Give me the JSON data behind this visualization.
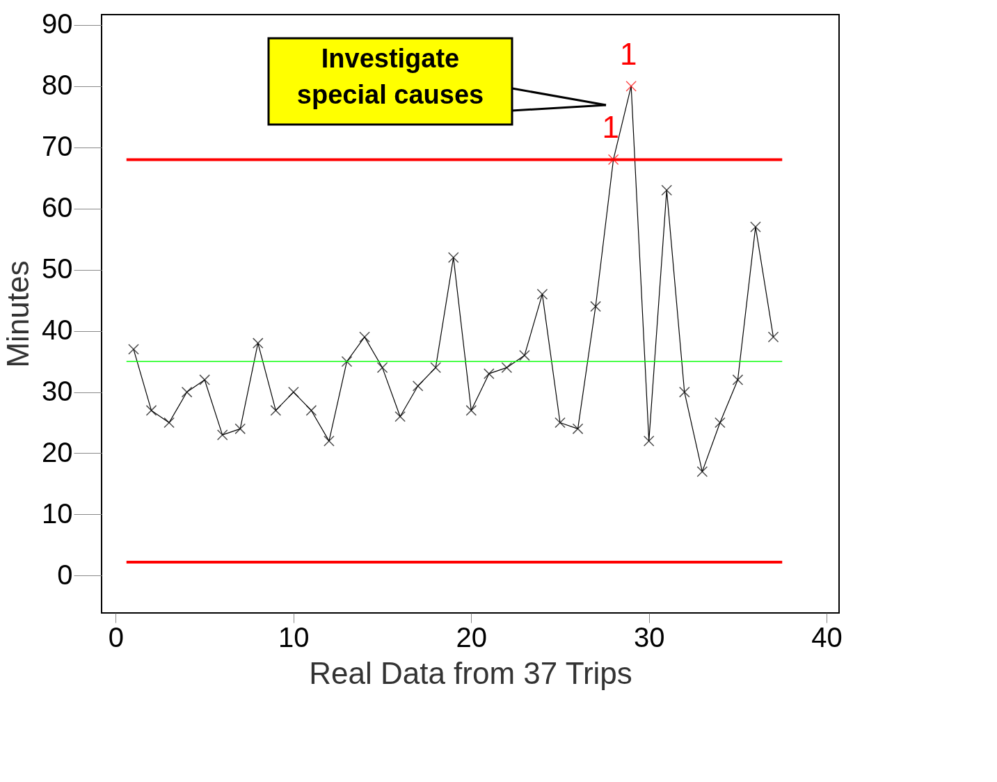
{
  "chart_data": {
    "type": "line",
    "xlabel": "Real Data from 37 Trips",
    "ylabel": "Minutes",
    "x": [
      1,
      2,
      3,
      4,
      5,
      6,
      7,
      8,
      9,
      10,
      11,
      12,
      13,
      14,
      15,
      16,
      17,
      18,
      19,
      20,
      21,
      22,
      23,
      24,
      25,
      26,
      27,
      28,
      29,
      30,
      31,
      32,
      33,
      34,
      35,
      36,
      37
    ],
    "series": [
      {
        "color": "#000000",
        "colors": [
          "#000000",
          "#000000",
          "#000000",
          "#000000",
          "#000000",
          "#000000",
          "#000000",
          "#000000",
          "#000000",
          "#000000",
          "#000000",
          "#000000",
          "#000000",
          "#000000",
          "#000000",
          "#000000",
          "#000000",
          "#000000",
          "#000000",
          "#000000",
          "#000000",
          "#000000",
          "#000000",
          "#000000",
          "#000000",
          "#000000",
          "#000000",
          "#ff0000",
          "#ff0000",
          "#000000",
          "#000000",
          "#000000",
          "#000000",
          "#000000",
          "#000000",
          "#000000",
          "#000000"
        ],
        "values": [
          37,
          27,
          25,
          30,
          32,
          23,
          24,
          38,
          27,
          30,
          27,
          22,
          35,
          39,
          34,
          26,
          31,
          34,
          52,
          27,
          33,
          34,
          36,
          46,
          25,
          24,
          44,
          68,
          80,
          22,
          63,
          30,
          17,
          25,
          32,
          57,
          39
        ]
      }
    ],
    "marker": "cross",
    "line_style": "solid",
    "ref_lines": [
      {
        "axis": "y",
        "value": 68,
        "color": "#ff0000"
      },
      {
        "axis": "y",
        "value": 35,
        "color": "#00ff00"
      },
      {
        "axis": "y",
        "value": 2.2,
        "color": "#ff0000"
      }
    ],
    "annotations": [
      "Investigate special causes",
      {
        "text": "1",
        "x": 28,
        "y": 68
      },
      {
        "text": "1",
        "x": 29,
        "y": 80
      }
    ],
    "xlim": [
      -0.8,
      40.7
    ],
    "ylim": [
      -6.1,
      91.7
    ],
    "xticks": [
      0,
      10,
      20,
      30,
      40
    ],
    "yticks": [
      0,
      10,
      20,
      30,
      40,
      50,
      60,
      70,
      80,
      90
    ]
  }
}
